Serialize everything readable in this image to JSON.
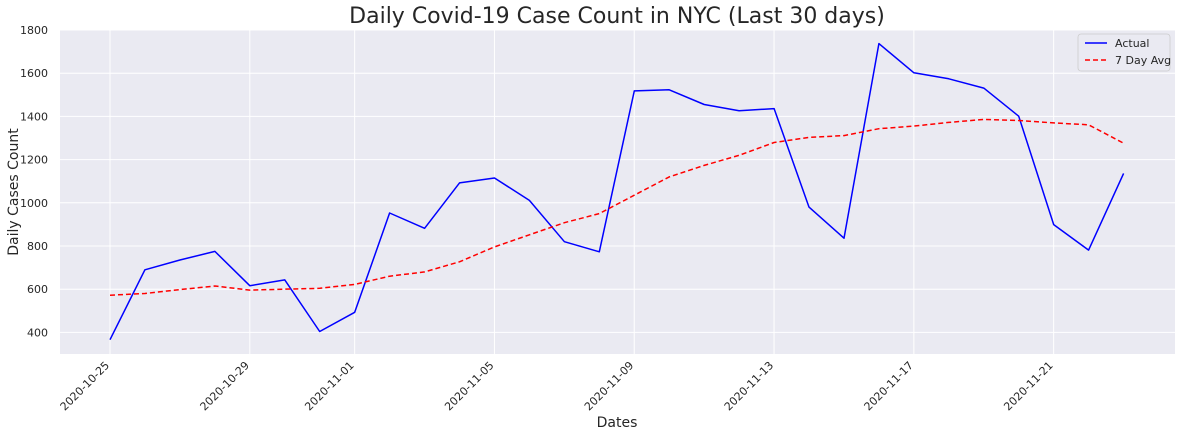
{
  "chart_data": {
    "type": "line",
    "title": "Daily Covid-19 Case Count in NYC (Last 30 days)",
    "xlabel": "Dates",
    "ylabel": "Daily Cases Count",
    "x": [
      "2020-10-25",
      "2020-10-26",
      "2020-10-27",
      "2020-10-28",
      "2020-10-29",
      "2020-10-30",
      "2020-10-31",
      "2020-11-01",
      "2020-11-02",
      "2020-11-03",
      "2020-11-04",
      "2020-11-05",
      "2020-11-06",
      "2020-11-07",
      "2020-11-08",
      "2020-11-09",
      "2020-11-10",
      "2020-11-11",
      "2020-11-12",
      "2020-11-13",
      "2020-11-14",
      "2020-11-15",
      "2020-11-16",
      "2020-11-17",
      "2020-11-18",
      "2020-11-19",
      "2020-11-20",
      "2020-11-21",
      "2020-11-22",
      "2020-11-23"
    ],
    "x_ticks": [
      "2020-10-25",
      "2020-10-29",
      "2020-11-01",
      "2020-11-05",
      "2020-11-09",
      "2020-11-13",
      "2020-11-17",
      "2020-11-21"
    ],
    "y_ticks": [
      400,
      600,
      800,
      1000,
      1200,
      1400,
      1600,
      1800
    ],
    "ylim": [
      300,
      1800
    ],
    "grid": true,
    "legend_position": "top-right",
    "series": [
      {
        "name": "Actual",
        "color": "#0000ff",
        "style": "solid",
        "values": [
          366,
          690,
          735,
          775,
          616,
          643,
          404,
          493,
          953,
          882,
          1092,
          1115,
          1011,
          820,
          773,
          1518,
          1523,
          1455,
          1426,
          1436,
          980,
          836,
          1737,
          1602,
          1574,
          1531,
          1401,
          899,
          781,
          1136
        ]
      },
      {
        "name": "7 Day Avg",
        "color": "#ff0000",
        "style": "dashed",
        "values": [
          572,
          580,
          598,
          615,
          596,
          600,
          604,
          622,
          660,
          680,
          727,
          796,
          852,
          908,
          950,
          1035,
          1120,
          1173,
          1220,
          1279,
          1303,
          1311,
          1343,
          1355,
          1372,
          1386,
          1381,
          1370,
          1361,
          1276
        ]
      }
    ]
  }
}
